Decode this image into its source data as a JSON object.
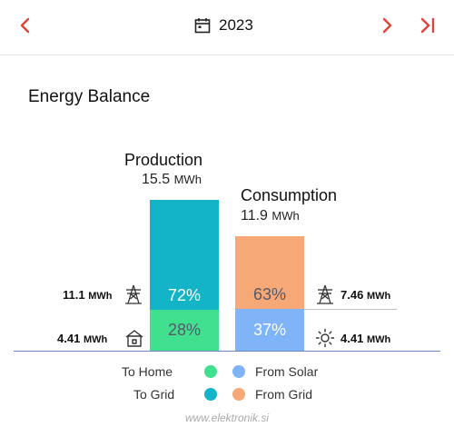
{
  "header": {
    "year": "2023",
    "prev_icon": "chevron-left-icon",
    "next_icon": "chevron-right-icon",
    "last_icon": "skip-to-end-icon",
    "calendar_icon": "calendar-icon",
    "accent": "#e0443a"
  },
  "title": "Energy Balance",
  "production": {
    "label": "Production",
    "total_value": "15.5",
    "total_unit": "MWh",
    "top_pct": "72%",
    "bottom_pct": "28%",
    "top_color": "#13b3c8",
    "bottom_color": "#41e08e",
    "top_side_value": "11.1",
    "top_side_unit": "MWh",
    "bottom_side_value": "4.41",
    "bottom_side_unit": "MWh",
    "top_icon": "power-tower-icon",
    "bottom_icon": "home-icon"
  },
  "consumption": {
    "label": "Consumption",
    "total_value": "11.9",
    "total_unit": "MWh",
    "top_pct": "63%",
    "bottom_pct": "37%",
    "top_color": "#f7a877",
    "bottom_color": "#7fb4f9",
    "top_side_value": "7.46",
    "top_side_unit": "MWh",
    "bottom_side_value": "4.41",
    "bottom_side_unit": "MWh",
    "top_icon": "power-tower-icon",
    "bottom_icon": "sun-icon"
  },
  "legend": {
    "to_home": "To Home",
    "to_grid": "To Grid",
    "from_solar": "From Solar",
    "from_grid": "From Grid"
  },
  "watermark": "www.elektronik.si"
}
